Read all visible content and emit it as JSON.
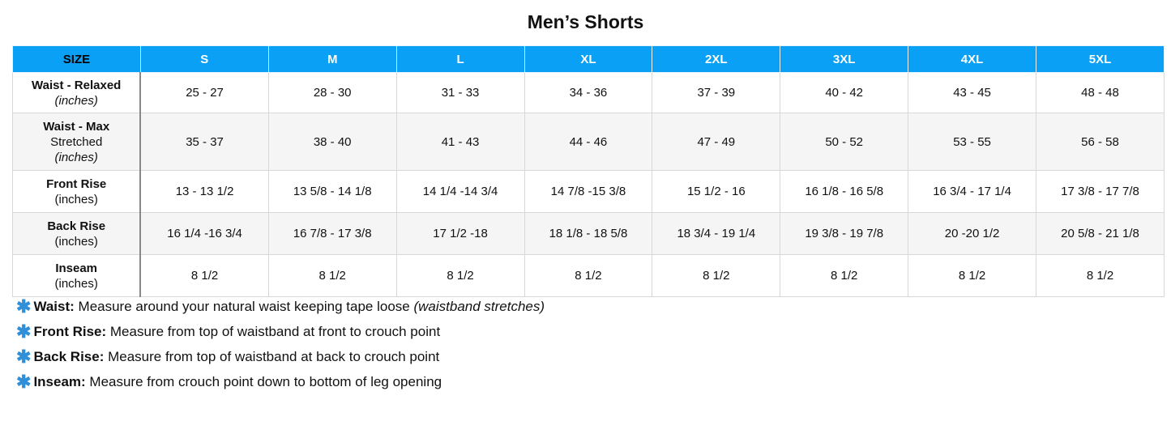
{
  "title": "Men’s Shorts",
  "header": [
    "SIZE",
    "S",
    "M",
    "L",
    "XL",
    "2XL",
    "3XL",
    "4XL",
    "5XL"
  ],
  "colors": {
    "header_bg": "#0aa0f5",
    "asterisk": "#2f8fd8",
    "alt_row": "#f5f5f5"
  },
  "rows": [
    {
      "label": "Waist - Relaxed",
      "label_extra": "",
      "unit": "(inches)",
      "unit_italic": true,
      "values": [
        "25 - 27",
        "28 - 30",
        "31 - 33",
        "34 - 36",
        "37 - 39",
        "40 - 42",
        "43 - 45",
        "48 - 48"
      ]
    },
    {
      "label": "Waist - Max",
      "label_extra": "Stretched",
      "unit": "(inches)",
      "unit_italic": true,
      "values": [
        "35 - 37",
        "38 - 40",
        "41 - 43",
        "44 - 46",
        "47 - 49",
        "50 - 52",
        "53 - 55",
        "56 - 58"
      ]
    },
    {
      "label": "Front Rise",
      "label_extra": "",
      "unit": "(inches)",
      "unit_italic": false,
      "values": [
        "13 - 13 1/2",
        "13 5/8 - 14 1/8",
        "14 1/4 -14 3/4",
        "14 7/8 -15 3/8",
        "15 1/2 - 16",
        "16 1/8 - 16 5/8",
        "16 3/4 - 17 1/4",
        "17 3/8 - 17 7/8"
      ]
    },
    {
      "label": "Back Rise",
      "label_extra": "",
      "unit": "(inches)",
      "unit_italic": false,
      "values": [
        "16 1/4 -16 3/4",
        "16 7/8 - 17 3/8",
        "17 1/2 -18",
        "18 1/8 - 18 5/8",
        "18 3/4 - 19 1/4",
        "19 3/8 - 19 7/8",
        "20 -20 1/2",
        "20 5/8 - 21 1/8"
      ]
    },
    {
      "label": "Inseam",
      "label_extra": "",
      "unit": "(inches)",
      "unit_italic": false,
      "values": [
        "8 1/2",
        "8 1/2",
        "8 1/2",
        "8 1/2",
        "8 1/2",
        "8 1/2",
        "8 1/2",
        "8 1/2"
      ]
    }
  ],
  "notes": [
    {
      "icon": "asterisk-icon",
      "term": "Waist:",
      "text": " Measure around your natural waist keeping tape loose ",
      "italic": "(waistband stretches)"
    },
    {
      "icon": "asterisk-icon",
      "term": "Front Rise:",
      "text": " Measure from top of waistband at front to crouch point",
      "italic": ""
    },
    {
      "icon": "asterisk-icon",
      "term": "Back Rise:",
      "text": " Measure from top of waistband at back to crouch point",
      "italic": ""
    },
    {
      "icon": "asterisk-icon",
      "term": "Inseam:",
      "text": " Measure from crouch point down to bottom of leg opening",
      "italic": ""
    }
  ]
}
